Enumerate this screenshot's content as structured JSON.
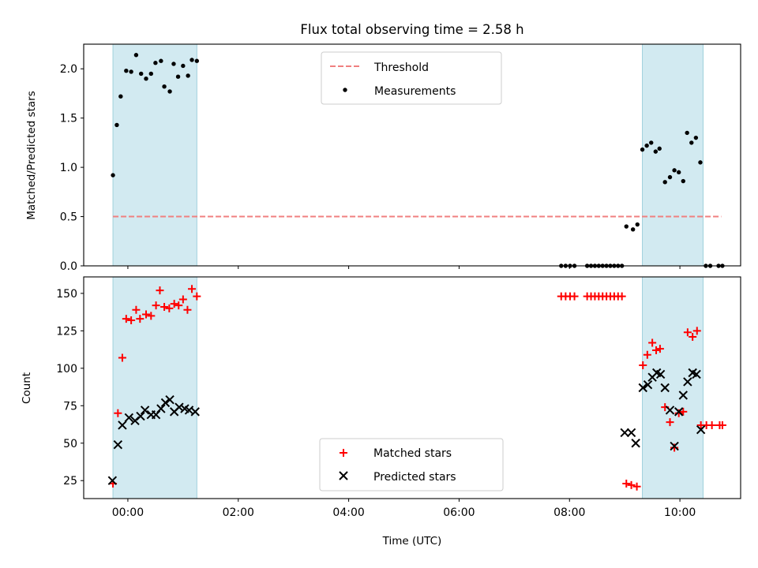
{
  "chart_data": [
    {
      "type": "scatter",
      "title": "Flux total observing time = 2.58 h",
      "xlabel": "",
      "ylabel": "Matched/Predicted stars",
      "x_unit": "hours UTC",
      "xlim": [
        -0.8,
        11.1
      ],
      "ylim": [
        0,
        2.25
      ],
      "yticks": [
        0.0,
        0.5,
        1.0,
        1.5,
        2.0
      ],
      "ytick_labels": [
        "0.0",
        "0.5",
        "1.0",
        "1.5",
        "2.0"
      ],
      "grid": false,
      "legend": "upper-center",
      "shaded_intervals": [
        [
          -0.27,
          1.25
        ],
        [
          9.32,
          10.42
        ]
      ],
      "threshold": {
        "name": "Threshold",
        "y": 0.5,
        "x_range": [
          -0.27,
          10.75
        ],
        "color": "#f08080"
      },
      "series": [
        {
          "name": "Measurements",
          "color": "#000000",
          "marker": "dot",
          "points": [
            [
              -0.27,
              0.92
            ],
            [
              -0.2,
              1.43
            ],
            [
              -0.13,
              1.72
            ],
            [
              -0.03,
              1.98
            ],
            [
              0.06,
              1.97
            ],
            [
              0.15,
              2.14
            ],
            [
              0.24,
              1.95
            ],
            [
              0.33,
              1.9
            ],
            [
              0.42,
              1.95
            ],
            [
              0.5,
              2.06
            ],
            [
              0.6,
              2.08
            ],
            [
              0.66,
              1.82
            ],
            [
              0.76,
              1.77
            ],
            [
              0.83,
              2.05
            ],
            [
              0.91,
              1.92
            ],
            [
              1.0,
              2.03
            ],
            [
              1.09,
              1.93
            ],
            [
              1.16,
              2.09
            ],
            [
              1.25,
              2.08
            ],
            [
              7.85,
              0.0
            ],
            [
              7.93,
              0.0
            ],
            [
              8.01,
              0.0
            ],
            [
              8.09,
              0.0
            ],
            [
              8.32,
              0.0
            ],
            [
              8.39,
              0.0
            ],
            [
              8.46,
              0.0
            ],
            [
              8.53,
              0.0
            ],
            [
              8.6,
              0.0
            ],
            [
              8.67,
              0.0
            ],
            [
              8.74,
              0.0
            ],
            [
              8.81,
              0.0
            ],
            [
              8.88,
              0.0
            ],
            [
              8.95,
              0.0
            ],
            [
              9.03,
              0.4
            ],
            [
              9.15,
              0.37
            ],
            [
              9.23,
              0.42
            ],
            [
              9.32,
              1.18
            ],
            [
              9.4,
              1.22
            ],
            [
              9.48,
              1.25
            ],
            [
              9.56,
              1.16
            ],
            [
              9.63,
              1.19
            ],
            [
              9.73,
              0.85
            ],
            [
              9.82,
              0.9
            ],
            [
              9.9,
              0.97
            ],
            [
              9.98,
              0.95
            ],
            [
              10.06,
              0.86
            ],
            [
              10.13,
              1.35
            ],
            [
              10.21,
              1.25
            ],
            [
              10.29,
              1.3
            ],
            [
              10.37,
              1.05
            ],
            [
              10.47,
              0.0
            ],
            [
              10.55,
              0.0
            ],
            [
              10.7,
              0.0
            ],
            [
              10.77,
              0.0
            ]
          ]
        }
      ]
    },
    {
      "type": "scatter",
      "title": "",
      "xlabel": "Time (UTC)",
      "ylabel": "Count",
      "x_unit": "hours UTC",
      "xlim": [
        -0.8,
        11.1
      ],
      "ylim": [
        13,
        161
      ],
      "xticks": [
        0,
        2,
        4,
        6,
        8,
        10
      ],
      "xtick_labels": [
        "00:00",
        "02:00",
        "04:00",
        "06:00",
        "08:00",
        "10:00"
      ],
      "yticks": [
        25,
        50,
        75,
        100,
        125,
        150
      ],
      "ytick_labels": [
        "25",
        "50",
        "75",
        "100",
        "125",
        "150"
      ],
      "grid": false,
      "legend": "lower-center",
      "shaded_intervals": [
        [
          -0.27,
          1.25
        ],
        [
          9.32,
          10.42
        ]
      ],
      "series": [
        {
          "name": "Matched stars",
          "color": "#ff0000",
          "marker": "plus",
          "points": [
            [
              -0.27,
              23
            ],
            [
              -0.18,
              70
            ],
            [
              -0.1,
              107
            ],
            [
              -0.03,
              133
            ],
            [
              0.06,
              132
            ],
            [
              0.15,
              139
            ],
            [
              0.22,
              133
            ],
            [
              0.33,
              136
            ],
            [
              0.42,
              135
            ],
            [
              0.51,
              142
            ],
            [
              0.58,
              152
            ],
            [
              0.66,
              141
            ],
            [
              0.75,
              140
            ],
            [
              0.84,
              143
            ],
            [
              0.92,
              142
            ],
            [
              1.0,
              146
            ],
            [
              1.08,
              139
            ],
            [
              1.16,
              153
            ],
            [
              1.25,
              148
            ],
            [
              7.85,
              148
            ],
            [
              7.93,
              148
            ],
            [
              8.01,
              148
            ],
            [
              8.09,
              148
            ],
            [
              8.32,
              148
            ],
            [
              8.39,
              148
            ],
            [
              8.46,
              148
            ],
            [
              8.53,
              148
            ],
            [
              8.6,
              148
            ],
            [
              8.67,
              148
            ],
            [
              8.74,
              148
            ],
            [
              8.81,
              148
            ],
            [
              8.88,
              148
            ],
            [
              8.95,
              148
            ],
            [
              9.03,
              23
            ],
            [
              9.12,
              22
            ],
            [
              9.22,
              21
            ],
            [
              9.33,
              102
            ],
            [
              9.41,
              109
            ],
            [
              9.5,
              117
            ],
            [
              9.57,
              112
            ],
            [
              9.64,
              113
            ],
            [
              9.73,
              74
            ],
            [
              9.82,
              64
            ],
            [
              9.9,
              47
            ],
            [
              9.98,
              70
            ],
            [
              10.06,
              71
            ],
            [
              10.14,
              124
            ],
            [
              10.23,
              121
            ],
            [
              10.31,
              125
            ],
            [
              10.38,
              62
            ],
            [
              10.48,
              62
            ],
            [
              10.58,
              62
            ],
            [
              10.72,
              62
            ],
            [
              10.77,
              62
            ]
          ]
        },
        {
          "name": "Predicted stars",
          "color": "#000000",
          "marker": "x",
          "points": [
            [
              -0.28,
              25
            ],
            [
              -0.18,
              49
            ],
            [
              -0.1,
              62
            ],
            [
              0.02,
              67
            ],
            [
              0.13,
              65
            ],
            [
              0.23,
              68
            ],
            [
              0.31,
              72
            ],
            [
              0.42,
              69
            ],
            [
              0.51,
              69
            ],
            [
              0.6,
              73
            ],
            [
              0.68,
              77
            ],
            [
              0.76,
              79
            ],
            [
              0.84,
              71
            ],
            [
              0.93,
              74
            ],
            [
              1.03,
              73
            ],
            [
              1.11,
              72
            ],
            [
              1.22,
              71
            ],
            [
              9.0,
              57
            ],
            [
              9.12,
              57
            ],
            [
              9.2,
              50
            ],
            [
              9.33,
              87
            ],
            [
              9.42,
              89
            ],
            [
              9.5,
              94
            ],
            [
              9.58,
              97
            ],
            [
              9.65,
              96
            ],
            [
              9.73,
              87
            ],
            [
              9.82,
              72
            ],
            [
              9.9,
              48
            ],
            [
              9.98,
              71
            ],
            [
              10.06,
              82
            ],
            [
              10.14,
              91
            ],
            [
              10.23,
              97
            ],
            [
              10.3,
              96
            ],
            [
              10.38,
              59
            ]
          ]
        }
      ]
    }
  ]
}
